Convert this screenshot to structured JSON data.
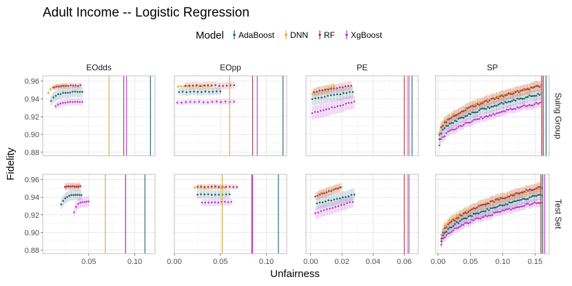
{
  "chart_data": {
    "type": "scatter",
    "title": "Adult Income -- Logistic Regression",
    "xlabel": "Unfairness",
    "ylabel": "Fidelity",
    "legend": {
      "title": "Model",
      "position": "top",
      "entries": [
        {
          "name": "AdaBoost",
          "color": "#1f5f6b"
        },
        {
          "name": "DNN",
          "color": "#d4a82a"
        },
        {
          "name": "RF",
          "color": "#b2354f"
        },
        {
          "name": "XgBoost",
          "color": "#b43ccc"
        }
      ]
    },
    "columns": [
      "EOdds",
      "EOpp",
      "PE",
      "SP"
    ],
    "rows": [
      "Suing Group",
      "Test Set"
    ],
    "xlim": {
      "EOdds": [
        0.0,
        0.122
      ],
      "EOpp": [
        0.0,
        0.122
      ],
      "PE": [
        -0.003,
        0.069
      ],
      "SP": [
        -0.004,
        0.172
      ]
    },
    "xticks": {
      "EOdds": [
        0.05,
        0.1
      ],
      "EOpp": [
        0.0,
        0.05,
        0.1
      ],
      "PE": [
        0.0,
        0.02,
        0.04,
        0.06
      ],
      "SP": [
        0.0,
        0.05,
        0.1,
        0.15
      ]
    },
    "xtick_labels": {
      "EOdds": [
        "0.05",
        "0.10"
      ],
      "EOpp": [
        "0.00",
        "0.05",
        "0.10"
      ],
      "PE": [
        "0.00",
        "0.02",
        "0.04",
        "0.06"
      ],
      "SP": [
        "0.00",
        "0.05",
        "0.10",
        "0.15"
      ]
    },
    "ylim": [
      0.876,
      0.966
    ],
    "yticks": [
      0.88,
      0.9,
      0.92,
      0.94,
      0.96
    ],
    "ytick_labels": [
      "0.88",
      "0.90",
      "0.92",
      "0.94",
      "0.96"
    ],
    "panels": [
      {
        "row": "Suing Group",
        "col": "EOdds",
        "vlines": {
          "AdaBoost": 0.117,
          "DNN": 0.072,
          "RF": 0.088,
          "XgBoost": 0.091
        },
        "series": [
          {
            "model": "AdaBoost",
            "x0": 0.009,
            "x1": 0.043,
            "y0": 0.938,
            "y1": 0.948,
            "shape": "sat",
            "n": 14,
            "band": 0.006
          },
          {
            "model": "DNN",
            "x0": 0.006,
            "x1": 0.026,
            "y0": 0.947,
            "y1": 0.955,
            "shape": "sat",
            "n": 9,
            "band": 0.003
          },
          {
            "model": "RF",
            "x0": 0.012,
            "x1": 0.041,
            "y0": 0.953,
            "y1": 0.955,
            "shape": "sat",
            "n": 12,
            "band": 0.003
          },
          {
            "model": "XgBoost",
            "x0": 0.014,
            "x1": 0.043,
            "y0": 0.932,
            "y1": 0.937,
            "shape": "sat",
            "n": 12,
            "band": 0.004
          }
        ]
      },
      {
        "row": "Suing Group",
        "col": "EOpp",
        "vlines": {
          "AdaBoost": 0.118,
          "DNN": 0.06,
          "RF": 0.085,
          "XgBoost": 0.09
        },
        "series": [
          {
            "model": "AdaBoost",
            "x0": 0.005,
            "x1": 0.05,
            "y0": 0.948,
            "y1": 0.948,
            "shape": "flat",
            "n": 12,
            "band": 0.004
          },
          {
            "model": "DNN",
            "x0": 0.004,
            "x1": 0.04,
            "y0": 0.954,
            "y1": 0.955,
            "shape": "flat",
            "n": 12,
            "band": 0.002
          },
          {
            "model": "RF",
            "x0": 0.012,
            "x1": 0.065,
            "y0": 0.955,
            "y1": 0.955,
            "shape": "flat",
            "n": 14,
            "band": 0.004
          },
          {
            "model": "XgBoost",
            "x0": 0.003,
            "x1": 0.065,
            "y0": 0.936,
            "y1": 0.937,
            "shape": "flat",
            "n": 14,
            "band": 0.003
          }
        ]
      },
      {
        "row": "Suing Group",
        "col": "PE",
        "vlines": {
          "AdaBoost": 0.065,
          "DNN": 0.062,
          "RF": 0.06,
          "XgBoost": 0.063
        },
        "series": [
          {
            "model": "AdaBoost",
            "x0": 0.001,
            "x1": 0.027,
            "y0": 0.94,
            "y1": 0.948,
            "shape": "lin",
            "n": 14,
            "band": 0.007
          },
          {
            "model": "DNN",
            "x0": 0.001,
            "x1": 0.015,
            "y0": 0.946,
            "y1": 0.954,
            "shape": "lin",
            "n": 10,
            "band": 0.005
          },
          {
            "model": "RF",
            "x0": 0.002,
            "x1": 0.026,
            "y0": 0.948,
            "y1": 0.955,
            "shape": "lin",
            "n": 14,
            "band": 0.005
          },
          {
            "model": "XgBoost",
            "x0": 0.001,
            "x1": 0.028,
            "y0": 0.924,
            "y1": 0.937,
            "shape": "lin",
            "n": 16,
            "band": 0.008
          }
        ]
      },
      {
        "row": "Suing Group",
        "col": "SP",
        "vlines": {
          "AdaBoost": 0.167,
          "DNN": 0.16,
          "RF": 0.161,
          "XgBoost": 0.163
        },
        "series": [
          {
            "model": "AdaBoost",
            "x0": 0.002,
            "x1": 0.16,
            "y0": 0.895,
            "y1": 0.946,
            "shape": "sqrt",
            "n": 60,
            "band": 0.006
          },
          {
            "model": "DNN",
            "x0": 0.002,
            "x1": 0.16,
            "y0": 0.902,
            "y1": 0.955,
            "shape": "sqrt",
            "n": 60,
            "band": 0.006
          },
          {
            "model": "RF",
            "x0": 0.002,
            "x1": 0.16,
            "y0": 0.9,
            "y1": 0.955,
            "shape": "sqrt",
            "n": 60,
            "band": 0.006
          },
          {
            "model": "XgBoost",
            "x0": 0.002,
            "x1": 0.16,
            "y0": 0.888,
            "y1": 0.936,
            "shape": "sqrt",
            "n": 60,
            "band": 0.005
          }
        ]
      },
      {
        "row": "Test Set",
        "col": "EOdds",
        "vlines": {
          "AdaBoost": 0.111,
          "DNN": 0.068,
          "RF": 0.09,
          "XgBoost": 0.09
        },
        "series": [
          {
            "model": "AdaBoost",
            "x0": 0.02,
            "x1": 0.042,
            "y0": 0.932,
            "y1": 0.943,
            "shape": "sat",
            "n": 11,
            "band": 0.006
          },
          {
            "model": "DNN",
            "x0": 0.025,
            "x1": 0.04,
            "y0": 0.951,
            "y1": 0.953,
            "shape": "sat",
            "n": 8,
            "band": 0.004
          },
          {
            "model": "RF",
            "x0": 0.024,
            "x1": 0.041,
            "y0": 0.952,
            "y1": 0.952,
            "shape": "sat",
            "n": 9,
            "band": 0.004
          },
          {
            "model": "XgBoost",
            "x0": 0.034,
            "x1": 0.05,
            "y0": 0.923,
            "y1": 0.935,
            "shape": "sat",
            "n": 8,
            "band": 0.006
          }
        ]
      },
      {
        "row": "Test Set",
        "col": "EOpp",
        "vlines": {
          "AdaBoost": 0.113,
          "DNN": 0.052,
          "RF": 0.084,
          "XgBoost": 0.085
        },
        "series": [
          {
            "model": "AdaBoost",
            "x0": 0.025,
            "x1": 0.06,
            "y0": 0.943,
            "y1": 0.943,
            "shape": "flat",
            "n": 10,
            "band": 0.005
          },
          {
            "model": "DNN",
            "x0": 0.022,
            "x1": 0.055,
            "y0": 0.951,
            "y1": 0.951,
            "shape": "flat",
            "n": 10,
            "band": 0.003
          },
          {
            "model": "RF",
            "x0": 0.025,
            "x1": 0.068,
            "y0": 0.952,
            "y1": 0.952,
            "shape": "flat",
            "n": 12,
            "band": 0.003
          },
          {
            "model": "XgBoost",
            "x0": 0.03,
            "x1": 0.062,
            "y0": 0.934,
            "y1": 0.935,
            "shape": "flat",
            "n": 10,
            "band": 0.004
          }
        ]
      },
      {
        "row": "Test Set",
        "col": "PE",
        "vlines": {
          "AdaBoost": 0.063,
          "DNN": 0.062,
          "RF": 0.06,
          "XgBoost": 0.063
        },
        "series": [
          {
            "model": "AdaBoost",
            "x0": 0.004,
            "x1": 0.028,
            "y0": 0.933,
            "y1": 0.943,
            "shape": "lin",
            "n": 14,
            "band": 0.007
          },
          {
            "model": "DNN",
            "x0": 0.005,
            "x1": 0.02,
            "y0": 0.944,
            "y1": 0.952,
            "shape": "lin",
            "n": 10,
            "band": 0.005
          },
          {
            "model": "RF",
            "x0": 0.003,
            "x1": 0.019,
            "y0": 0.941,
            "y1": 0.951,
            "shape": "lin",
            "n": 12,
            "band": 0.005
          },
          {
            "model": "XgBoost",
            "x0": 0.003,
            "x1": 0.027,
            "y0": 0.922,
            "y1": 0.935,
            "shape": "lin",
            "n": 14,
            "band": 0.007
          }
        ]
      },
      {
        "row": "Test Set",
        "col": "SP",
        "vlines": {
          "AdaBoost": 0.162,
          "DNN": 0.16,
          "RF": 0.159,
          "XgBoost": 0.165
        },
        "series": [
          {
            "model": "AdaBoost",
            "x0": 0.005,
            "x1": 0.16,
            "y0": 0.89,
            "y1": 0.943,
            "shape": "sqrt",
            "n": 60,
            "band": 0.006
          },
          {
            "model": "DNN",
            "x0": 0.005,
            "x1": 0.16,
            "y0": 0.897,
            "y1": 0.951,
            "shape": "sqrt",
            "n": 60,
            "band": 0.006
          },
          {
            "model": "RF",
            "x0": 0.005,
            "x1": 0.16,
            "y0": 0.893,
            "y1": 0.952,
            "shape": "sqrt",
            "n": 60,
            "band": 0.006
          },
          {
            "model": "XgBoost",
            "x0": 0.005,
            "x1": 0.16,
            "y0": 0.886,
            "y1": 0.935,
            "shape": "sqrt",
            "n": 60,
            "band": 0.005
          }
        ]
      }
    ]
  }
}
